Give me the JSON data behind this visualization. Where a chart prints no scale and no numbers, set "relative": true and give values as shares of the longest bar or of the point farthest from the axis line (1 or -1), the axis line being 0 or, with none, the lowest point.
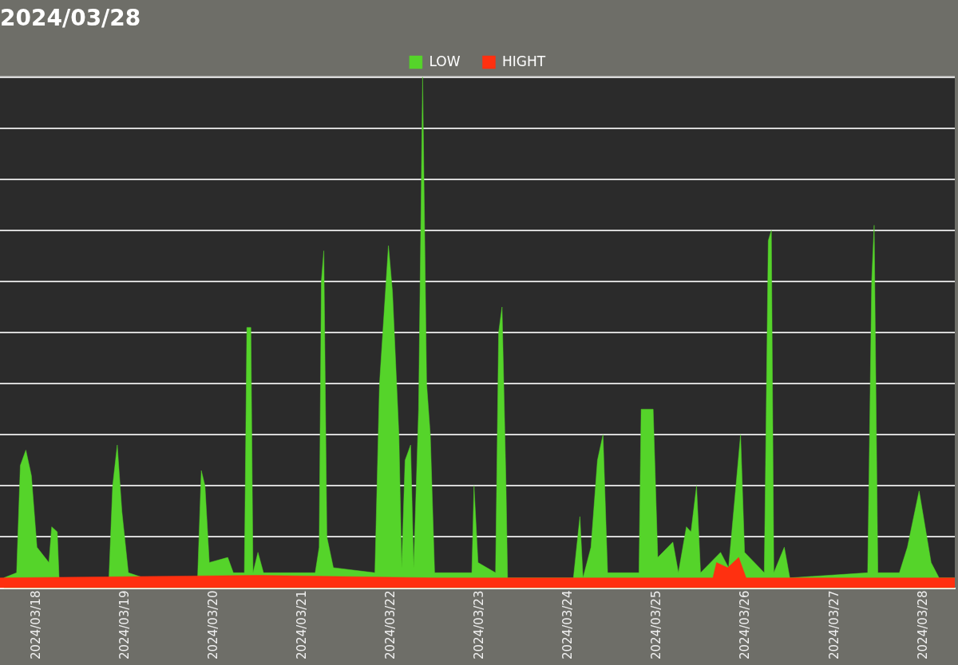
{
  "chart_data": {
    "type": "area",
    "title": "2024/03/28",
    "relative": true,
    "grid": "y",
    "legend": "top",
    "marker": "none",
    "xlim": [
      "2024-03-17T14:00",
      "2024-03-28T08:30"
    ],
    "xticks": [
      {
        "value": "2024-03-18",
        "label": "2024/03/18"
      },
      {
        "value": "2024-03-19",
        "label": "2024/03/19"
      },
      {
        "value": "2024-03-20",
        "label": "2024/03/20"
      },
      {
        "value": "2024-03-21",
        "label": "2024/03/21"
      },
      {
        "value": "2024-03-22",
        "label": "2024/03/22"
      },
      {
        "value": "2024-03-23",
        "label": "2024/03/23"
      },
      {
        "value": "2024-03-24",
        "label": "2024/03/24"
      },
      {
        "value": "2024-03-25",
        "label": "2024/03/25"
      },
      {
        "value": "2024-03-26",
        "label": "2024/03/26"
      },
      {
        "value": "2024-03-27",
        "label": "2024/03/27"
      },
      {
        "value": "2024-03-28",
        "label": "2024/03/28"
      }
    ],
    "series": [
      {
        "name": "LOW",
        "color": "#55d42a",
        "x": [
          "2024-03-17T15:00",
          "2024-03-17T18:30",
          "2024-03-17T19:30",
          "2024-03-17T21:00",
          "2024-03-17T22:30",
          "2024-03-18T00:00",
          "2024-03-18T03:15",
          "2024-03-18T04:00",
          "2024-03-18T05:30",
          "2024-03-18T06:00",
          "2024-03-18T19:30",
          "2024-03-18T20:30",
          "2024-03-18T21:45",
          "2024-03-18T23:00",
          "2024-03-19T00:45",
          "2024-03-19T05:00",
          "2024-03-19T19:30",
          "2024-03-19T20:30",
          "2024-03-19T21:30",
          "2024-03-19T22:40",
          "2024-03-20T03:40",
          "2024-03-20T05:10",
          "2024-03-20T08:10",
          "2024-03-20T08:50",
          "2024-03-20T09:55",
          "2024-03-20T10:30",
          "2024-03-20T11:50",
          "2024-03-20T13:20",
          "2024-03-21T03:20",
          "2024-03-21T04:25",
          "2024-03-21T05:00",
          "2024-03-21T05:40",
          "2024-03-21T06:30",
          "2024-03-21T08:15",
          "2024-03-21T19:30",
          "2024-03-21T20:45",
          "2024-03-21T23:10",
          "2024-03-22T00:15",
          "2024-03-22T02:00",
          "2024-03-22T02:45",
          "2024-03-22T03:40",
          "2024-03-22T05:10",
          "2024-03-22T06:00",
          "2024-03-22T07:20",
          "2024-03-22T08:25",
          "2024-03-22T09:30",
          "2024-03-22T10:30",
          "2024-03-22T11:40",
          "2024-03-22T21:45",
          "2024-03-22T22:20",
          "2024-03-22T23:25",
          "2024-03-23T04:10",
          "2024-03-23T05:00",
          "2024-03-23T05:55",
          "2024-03-23T07:00",
          "2024-03-23T07:25",
          "2024-03-24T01:15",
          "2024-03-24T03:00",
          "2024-03-24T03:50",
          "2024-03-24T06:00",
          "2024-03-24T07:45",
          "2024-03-24T09:15",
          "2024-03-24T10:30",
          "2024-03-24T19:00",
          "2024-03-24T19:35",
          "2024-03-24T22:50",
          "2024-03-25T00:05",
          "2024-03-25T04:10",
          "2024-03-25T05:40",
          "2024-03-25T07:50",
          "2024-03-25T09:05",
          "2024-03-25T10:35",
          "2024-03-25T11:40",
          "2024-03-25T17:05",
          "2024-03-25T19:15",
          "2024-03-25T22:30",
          "2024-03-25T23:35",
          "2024-03-26T04:55",
          "2024-03-26T06:00",
          "2024-03-26T06:50",
          "2024-03-26T07:30",
          "2024-03-26T10:20",
          "2024-03-26T11:50",
          "2024-03-27T08:55",
          "2024-03-27T10:00",
          "2024-03-27T10:40",
          "2024-03-27T11:40",
          "2024-03-27T17:30",
          "2024-03-27T19:40",
          "2024-03-27T22:50",
          "2024-03-28T02:05",
          "2024-03-28T04:15",
          "2024-03-28T08:30"
        ],
        "values": [
          0.02,
          0.03,
          0.24,
          0.27,
          0.22,
          0.08,
          0.05,
          0.12,
          0.11,
          0.02,
          0.02,
          0.2,
          0.28,
          0.15,
          0.03,
          0.02,
          0.02,
          0.23,
          0.2,
          0.05,
          0.06,
          0.03,
          0.03,
          0.51,
          0.51,
          0.03,
          0.07,
          0.03,
          0.03,
          0.08,
          0.6,
          0.66,
          0.1,
          0.04,
          0.03,
          0.4,
          0.67,
          0.58,
          0.3,
          0.04,
          0.25,
          0.28,
          0.04,
          0.35,
          1,
          0.4,
          0.3,
          0.03,
          0.03,
          0.2,
          0.05,
          0.03,
          0.5,
          0.55,
          0.2,
          0.02,
          0.02,
          0.14,
          0.02,
          0.08,
          0.25,
          0.3,
          0.03,
          0.03,
          0.35,
          0.35,
          0.06,
          0.09,
          0.03,
          0.12,
          0.11,
          0.2,
          0.03,
          0.07,
          0.04,
          0.3,
          0.07,
          0.03,
          0.68,
          0.7,
          0.03,
          0.08,
          0.02,
          0.03,
          0.6,
          0.71,
          0.03,
          0.03,
          0.08,
          0.19,
          0.05,
          0.02,
          0.02
        ]
      },
      {
        "name": "HIGHT",
        "color": "#ff3010",
        "x": [
          "2024-03-17T14:00",
          "2024-03-20T12:00",
          "2024-03-22T12:00",
          "2024-03-25T15:00",
          "2024-03-25T16:00",
          "2024-03-25T19:00",
          "2024-03-25T22:00",
          "2024-03-26T00:00",
          "2024-03-28T08:30"
        ],
        "values": [
          0.02,
          0.025,
          0.02,
          0.02,
          0.05,
          0.04,
          0.06,
          0.02,
          0.02
        ]
      }
    ]
  }
}
